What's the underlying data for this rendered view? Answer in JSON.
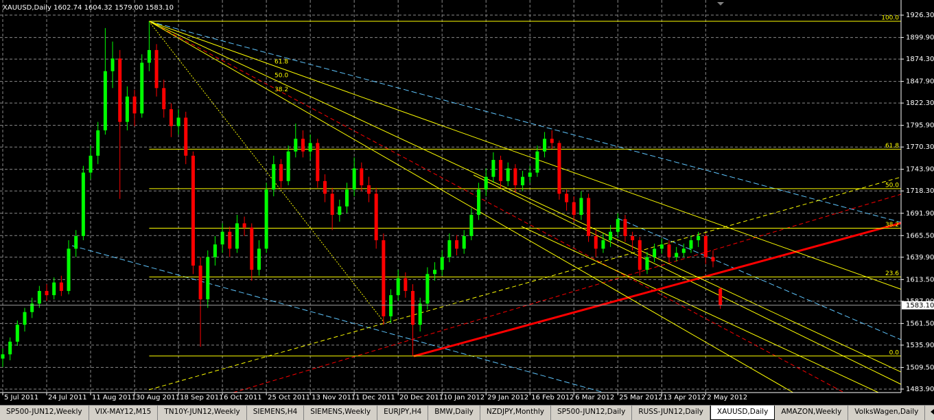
{
  "chart_data": {
    "type": "candlestick",
    "title": "XAUUSD,Daily  1602.74 1604.32 1579.00 1583.10",
    "up_color": "#00ff00",
    "down_color": "#ff0000",
    "grid": true,
    "ylim": [
      1479.8,
      1944.2
    ],
    "yticks": [
      {
        "value": 1926.3,
        "label": "1926.30"
      },
      {
        "value": 1899.9,
        "label": "1899.90"
      },
      {
        "value": 1874.3,
        "label": "1874.30"
      },
      {
        "value": 1847.9,
        "label": "1847.90"
      },
      {
        "value": 1822.3,
        "label": "1822.30"
      },
      {
        "value": 1795.9,
        "label": "1795.90"
      },
      {
        "value": 1770.3,
        "label": "1770.30"
      },
      {
        "value": 1743.9,
        "label": "1743.90"
      },
      {
        "value": 1718.3,
        "label": "1718.30"
      },
      {
        "value": 1691.9,
        "label": "1691.90"
      },
      {
        "value": 1665.5,
        "label": "1665.50"
      },
      {
        "value": 1639.9,
        "label": "1639.90"
      },
      {
        "value": 1613.5,
        "label": "1613.50"
      },
      {
        "value": 1587.9,
        "label": "1587.90"
      },
      {
        "value": 1561.5,
        "label": "1561.50"
      },
      {
        "value": 1535.9,
        "label": "1535.90"
      },
      {
        "value": 1509.5,
        "label": "1509.50"
      },
      {
        "value": 1483.9,
        "label": "1483.90"
      }
    ],
    "price_marker": {
      "value": 1583.1,
      "label": "1583.10"
    },
    "categories": [
      "5 Jul 2011",
      null,
      null,
      null,
      null,
      null,
      "24 Jul 2011",
      null,
      null,
      null,
      null,
      null,
      "11 Aug 2011",
      null,
      null,
      null,
      null,
      null,
      "30 Aug 2011",
      null,
      null,
      null,
      null,
      null,
      "18 Sep 2011",
      null,
      null,
      null,
      null,
      null,
      "6 Oct 2011",
      null,
      null,
      null,
      null,
      null,
      "25 Oct 2011",
      null,
      null,
      null,
      null,
      null,
      "13 Nov 2011",
      null,
      null,
      null,
      null,
      null,
      "1 Dec 2011",
      null,
      null,
      null,
      null,
      null,
      "20 Dec 2011",
      null,
      null,
      null,
      null,
      null,
      "10 Jan 2012",
      null,
      null,
      null,
      null,
      null,
      "29 Jan 2012",
      null,
      null,
      null,
      null,
      null,
      "16 Feb 2012",
      null,
      null,
      null,
      null,
      null,
      "6 Mar 2012",
      null,
      null,
      null,
      null,
      null,
      "25 Mar 2012",
      null,
      null,
      null,
      null,
      null,
      "13 Apr 2012",
      null,
      null,
      null,
      null,
      null,
      "2 May 2012",
      null,
      null
    ],
    "ohlc": [
      [
        1520,
        1532,
        1510,
        1525
      ],
      [
        1525,
        1545,
        1518,
        1540
      ],
      [
        1540,
        1565,
        1535,
        1560
      ],
      [
        1560,
        1580,
        1552,
        1575
      ],
      [
        1575,
        1592,
        1568,
        1585
      ],
      [
        1585,
        1606,
        1580,
        1600
      ],
      [
        1600,
        1608,
        1588,
        1595
      ],
      [
        1595,
        1616,
        1590,
        1610
      ],
      [
        1610,
        1618,
        1594,
        1600
      ],
      [
        1600,
        1660,
        1596,
        1650
      ],
      [
        1650,
        1672,
        1640,
        1665
      ],
      [
        1665,
        1748,
        1660,
        1740
      ],
      [
        1740,
        1772,
        1732,
        1760
      ],
      [
        1760,
        1800,
        1750,
        1790
      ],
      [
        1790,
        1911,
        1785,
        1860
      ],
      [
        1860,
        1895,
        1840,
        1875
      ],
      [
        1875,
        1885,
        1709,
        1800
      ],
      [
        1800,
        1842,
        1790,
        1830
      ],
      [
        1830,
        1838,
        1795,
        1810
      ],
      [
        1810,
        1880,
        1805,
        1870
      ],
      [
        1870,
        1919,
        1860,
        1885
      ],
      [
        1885,
        1892,
        1830,
        1840
      ],
      [
        1840,
        1850,
        1805,
        1815
      ],
      [
        1815,
        1822,
        1782,
        1795
      ],
      [
        1795,
        1815,
        1785,
        1805
      ],
      [
        1805,
        1812,
        1750,
        1760
      ],
      [
        1760,
        1765,
        1620,
        1630
      ],
      [
        1630,
        1640,
        1534,
        1590
      ],
      [
        1590,
        1648,
        1580,
        1640
      ],
      [
        1640,
        1665,
        1630,
        1655
      ],
      [
        1655,
        1680,
        1645,
        1670
      ],
      [
        1670,
        1676,
        1640,
        1650
      ],
      [
        1650,
        1690,
        1645,
        1680
      ],
      [
        1680,
        1688,
        1665,
        1675
      ],
      [
        1675,
        1680,
        1612,
        1625
      ],
      [
        1625,
        1660,
        1618,
        1650
      ],
      [
        1650,
        1728,
        1645,
        1720
      ],
      [
        1720,
        1760,
        1712,
        1750
      ],
      [
        1750,
        1756,
        1722,
        1730
      ],
      [
        1730,
        1772,
        1725,
        1765
      ],
      [
        1765,
        1798,
        1758,
        1780
      ],
      [
        1780,
        1790,
        1758,
        1765
      ],
      [
        1765,
        1785,
        1755,
        1775
      ],
      [
        1775,
        1780,
        1722,
        1730
      ],
      [
        1730,
        1738,
        1705,
        1715
      ],
      [
        1715,
        1722,
        1672,
        1690
      ],
      [
        1690,
        1708,
        1682,
        1700
      ],
      [
        1700,
        1728,
        1692,
        1720
      ],
      [
        1720,
        1758,
        1712,
        1745
      ],
      [
        1745,
        1752,
        1718,
        1725
      ],
      [
        1725,
        1735,
        1705,
        1715
      ],
      [
        1715,
        1722,
        1650,
        1660
      ],
      [
        1660,
        1668,
        1560,
        1570
      ],
      [
        1570,
        1602,
        1562,
        1595
      ],
      [
        1595,
        1625,
        1588,
        1615
      ],
      [
        1615,
        1622,
        1592,
        1600
      ],
      [
        1600,
        1608,
        1523,
        1560
      ],
      [
        1560,
        1592,
        1552,
        1585
      ],
      [
        1585,
        1628,
        1578,
        1620
      ],
      [
        1620,
        1634,
        1612,
        1625
      ],
      [
        1625,
        1648,
        1618,
        1640
      ],
      [
        1640,
        1668,
        1634,
        1660
      ],
      [
        1660,
        1666,
        1642,
        1650
      ],
      [
        1650,
        1672,
        1644,
        1665
      ],
      [
        1665,
        1698,
        1660,
        1690
      ],
      [
        1690,
        1728,
        1684,
        1720
      ],
      [
        1720,
        1745,
        1712,
        1735
      ],
      [
        1735,
        1764,
        1728,
        1755
      ],
      [
        1755,
        1760,
        1722,
        1730
      ],
      [
        1730,
        1752,
        1724,
        1745
      ],
      [
        1745,
        1750,
        1716,
        1725
      ],
      [
        1725,
        1742,
        1718,
        1735
      ],
      [
        1735,
        1748,
        1728,
        1740
      ],
      [
        1740,
        1772,
        1735,
        1765
      ],
      [
        1765,
        1788,
        1758,
        1780
      ],
      [
        1780,
        1790,
        1768,
        1775
      ],
      [
        1775,
        1778,
        1708,
        1715
      ],
      [
        1715,
        1720,
        1695,
        1705
      ],
      [
        1705,
        1712,
        1682,
        1690
      ],
      [
        1690,
        1718,
        1684,
        1710
      ],
      [
        1710,
        1715,
        1658,
        1665
      ],
      [
        1665,
        1672,
        1640,
        1650
      ],
      [
        1650,
        1668,
        1645,
        1660
      ],
      [
        1660,
        1678,
        1652,
        1670
      ],
      [
        1670,
        1692,
        1664,
        1685
      ],
      [
        1685,
        1690,
        1658,
        1665
      ],
      [
        1665,
        1670,
        1648,
        1660
      ],
      [
        1660,
        1664,
        1618,
        1625
      ],
      [
        1625,
        1646,
        1620,
        1640
      ],
      [
        1640,
        1656,
        1634,
        1650
      ],
      [
        1650,
        1662,
        1644,
        1655
      ],
      [
        1655,
        1660,
        1634,
        1640
      ],
      [
        1640,
        1652,
        1635,
        1645
      ],
      [
        1645,
        1656,
        1640,
        1650
      ],
      [
        1650,
        1666,
        1645,
        1660
      ],
      [
        1660,
        1670,
        1652,
        1665
      ],
      [
        1665,
        1668,
        1632,
        1640
      ],
      [
        1640,
        1648,
        1628,
        1635
      ],
      [
        1602.74,
        1604.32,
        1579.0,
        1583.1
      ]
    ],
    "fibonacci": {
      "low": 1523,
      "high": 1919,
      "color": "#ffff00",
      "levels": [
        {
          "value": 100,
          "label": "100.0"
        },
        {
          "value": 61.8,
          "label": "61.8"
        },
        {
          "value": 50,
          "label": "50.0"
        },
        {
          "value": 38.2,
          "label": "38.2"
        },
        {
          "value": 23.6,
          "label": "23.6"
        },
        {
          "value": 0,
          "label": "0.0"
        }
      ]
    },
    "fan": {
      "color": "#ffff00",
      "levels": [
        {
          "value": 61.8,
          "label": "61.8"
        },
        {
          "value": 50,
          "label": "50.0"
        },
        {
          "value": 38.2,
          "label": "38.2"
        }
      ]
    }
  },
  "tabs": [
    {
      "label": "SP500-JUN12,Weekly"
    },
    {
      "label": "VIX-MAY12,M15"
    },
    {
      "label": "TN10Y-JUN12,Weekly"
    },
    {
      "label": "SIEMENS,H4"
    },
    {
      "label": "SIEMENS,Weekly"
    },
    {
      "label": "EURJPY,H4"
    },
    {
      "label": "BMW,Daily"
    },
    {
      "label": "NZDJPY,Monthly"
    },
    {
      "label": "SP500-JUN12,Daily"
    },
    {
      "label": "RUSS-JUN12,Daily"
    },
    {
      "label": "XAUUSD,Daily",
      "active": true
    },
    {
      "label": "AMAZON,Weekly"
    },
    {
      "label": "VolksWagen,Daily"
    }
  ]
}
